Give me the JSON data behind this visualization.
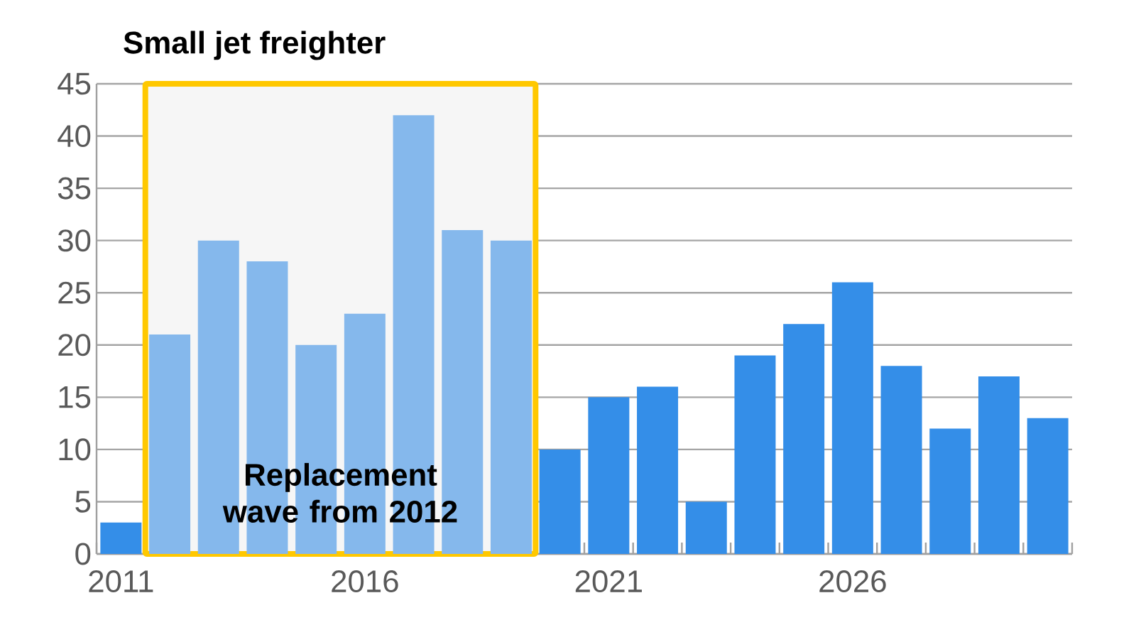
{
  "chart_data": {
    "type": "bar",
    "title": "Small jet freighter",
    "x": [
      2011,
      2012,
      2013,
      2014,
      2015,
      2016,
      2017,
      2018,
      2019,
      2020,
      2021,
      2022,
      2023,
      2024,
      2025,
      2026,
      2027,
      2028,
      2029,
      2030
    ],
    "values": [
      3,
      21,
      30,
      28,
      20,
      23,
      42,
      31,
      30,
      10,
      15,
      16,
      5,
      19,
      22,
      26,
      18,
      12,
      17,
      13
    ],
    "colors": [
      "#348ee8",
      "#85b8ec",
      "#85b8ec",
      "#85b8ec",
      "#85b8ec",
      "#85b8ec",
      "#85b8ec",
      "#85b8ec",
      "#85b8ec",
      "#348ee8",
      "#348ee8",
      "#348ee8",
      "#348ee8",
      "#348ee8",
      "#348ee8",
      "#348ee8",
      "#348ee8",
      "#348ee8",
      "#348ee8",
      "#348ee8"
    ],
    "xlim": [
      2010.5,
      2030.5
    ],
    "xticks": [
      2011,
      2016,
      2021,
      2026
    ],
    "ylim": [
      0,
      45
    ],
    "yticks": [
      0,
      5,
      10,
      15,
      20,
      25,
      30,
      35,
      40,
      45
    ],
    "grid": "y",
    "bands": [
      {
        "axis": "x",
        "from": 2011.5,
        "to": 2019.5,
        "label": "Replacement wave from 2012",
        "color": "#ffc800"
      }
    ]
  }
}
